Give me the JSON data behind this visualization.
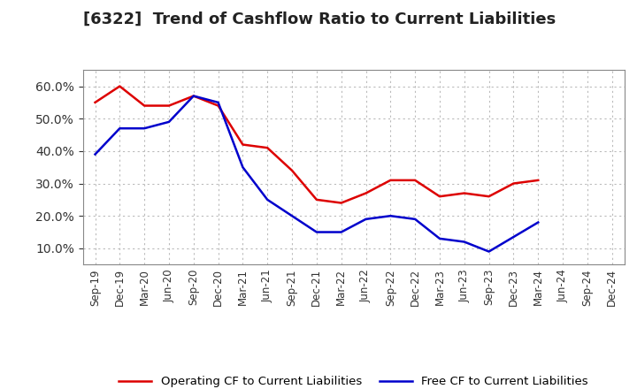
{
  "title": "[6322]  Trend of Cashflow Ratio to Current Liabilities",
  "x_labels": [
    "Sep-19",
    "Dec-19",
    "Mar-20",
    "Jun-20",
    "Sep-20",
    "Dec-20",
    "Mar-21",
    "Jun-21",
    "Sep-21",
    "Dec-21",
    "Mar-22",
    "Jun-22",
    "Sep-22",
    "Dec-22",
    "Mar-23",
    "Jun-23",
    "Sep-23",
    "Dec-23",
    "Mar-24",
    "Jun-24",
    "Sep-24",
    "Dec-24"
  ],
  "operating_cf": [
    0.55,
    0.6,
    0.54,
    0.54,
    0.57,
    0.54,
    0.42,
    0.41,
    0.34,
    0.25,
    0.24,
    0.27,
    0.31,
    0.31,
    0.26,
    0.27,
    0.26,
    0.3,
    0.31,
    null,
    null,
    null
  ],
  "free_cf": [
    0.39,
    0.47,
    0.47,
    0.49,
    0.57,
    0.55,
    0.35,
    0.25,
    0.2,
    0.15,
    0.15,
    0.19,
    0.2,
    0.19,
    0.13,
    0.12,
    0.09,
    null,
    0.18,
    null,
    null,
    null
  ],
  "ylim": [
    0.05,
    0.65
  ],
  "yticks": [
    0.1,
    0.2,
    0.3,
    0.4,
    0.5,
    0.6
  ],
  "operating_color": "#dd0000",
  "free_color": "#0000cc",
  "background_color": "#ffffff",
  "grid_color": "#aaaaaa",
  "title_fontsize": 13,
  "legend_operating": "Operating CF to Current Liabilities",
  "legend_free": "Free CF to Current Liabilities"
}
